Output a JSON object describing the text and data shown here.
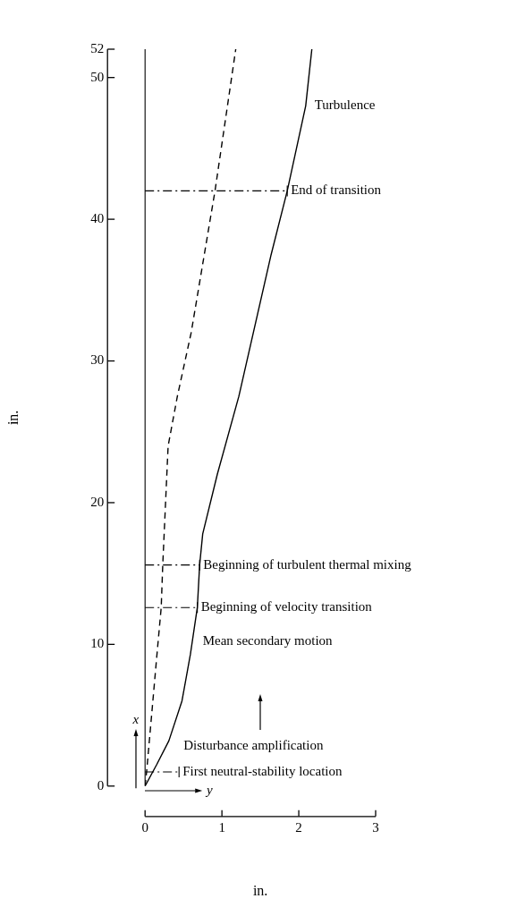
{
  "chart_data": {
    "type": "line",
    "xlabel": "in.",
    "ylabel": "in.",
    "xlim": [
      0,
      3
    ],
    "xticks": [
      0,
      1,
      2,
      3
    ],
    "ylim": [
      0,
      52
    ],
    "yticks": [
      0,
      10,
      20,
      30,
      40,
      50,
      52
    ],
    "grid": false,
    "legend": false,
    "marker": "none",
    "series": [
      {
        "color": "#000000",
        "line_style": "solid",
        "x": [
          0,
          0.15,
          0.31,
          0.48,
          0.59,
          0.68,
          0.71,
          0.75,
          0.94,
          1.22,
          1.64,
          1.85,
          2.09,
          2.17
        ],
        "values": [
          0,
          1.5,
          3.2,
          6,
          9.3,
          12.6,
          15.6,
          17.8,
          22,
          27.5,
          37.5,
          42,
          48,
          52
        ]
      },
      {
        "color": "#000000",
        "line_style": "dashed",
        "x": [
          0,
          0.02,
          0.09,
          0.15,
          0.21,
          0.23,
          0.3,
          0.42,
          0.6,
          0.91,
          1.18
        ],
        "values": [
          0,
          1,
          5.3,
          9,
          12.6,
          15.6,
          24,
          27.5,
          32,
          42,
          52
        ]
      }
    ],
    "ref_lines": [
      {
        "axis": "x",
        "value": 0,
        "line_style": "solid"
      },
      {
        "axis": "y",
        "value": 42,
        "label": "End of transition",
        "line_style": "dashdot"
      },
      {
        "axis": "y",
        "value": 15.6,
        "label": "Beginning of turbulent thermal mixing",
        "line_style": "dashdot"
      },
      {
        "axis": "y",
        "value": 12.6,
        "label": "Beginning of velocity transition",
        "line_style": "dashdot"
      },
      {
        "axis": "y",
        "value": 1,
        "label": "First neutral-stability location",
        "line_style": "dashdot"
      }
    ],
    "annotations": [
      "Turbulence",
      "Mean secondary motion",
      "Disturbance amplification",
      "x",
      "y"
    ]
  }
}
